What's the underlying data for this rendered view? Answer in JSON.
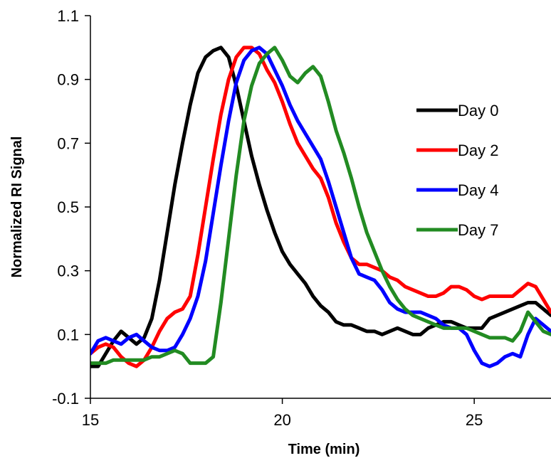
{
  "chart_data": {
    "type": "line",
    "title": "",
    "xlabel": "Time (min)",
    "ylabel": "Normalized RI Signal",
    "xlim": [
      15,
      27
    ],
    "ylim": [
      -0.1,
      1.1
    ],
    "xticks": [
      15,
      20,
      25
    ],
    "xtick_labels": [
      "15",
      "20",
      "25"
    ],
    "yticks": [
      -0.1,
      0.1,
      0.3,
      0.5,
      0.7,
      0.9,
      1.1
    ],
    "ytick_labels": [
      "-0.1",
      "0.1",
      "0.3",
      "0.5",
      "0.7",
      "0.9",
      "1.1"
    ],
    "grid": false,
    "legend_position": "right",
    "series": [
      {
        "name": "Day 0",
        "color": "#000000",
        "points": [
          [
            15.0,
            0.0
          ],
          [
            15.2,
            0.0
          ],
          [
            15.4,
            0.04
          ],
          [
            15.6,
            0.08
          ],
          [
            15.8,
            0.11
          ],
          [
            16.0,
            0.09
          ],
          [
            16.2,
            0.07
          ],
          [
            16.4,
            0.09
          ],
          [
            16.6,
            0.15
          ],
          [
            16.8,
            0.27
          ],
          [
            17.0,
            0.42
          ],
          [
            17.2,
            0.57
          ],
          [
            17.4,
            0.7
          ],
          [
            17.6,
            0.82
          ],
          [
            17.8,
            0.92
          ],
          [
            18.0,
            0.97
          ],
          [
            18.2,
            0.99
          ],
          [
            18.4,
            1.0
          ],
          [
            18.6,
            0.97
          ],
          [
            18.8,
            0.88
          ],
          [
            19.0,
            0.77
          ],
          [
            19.2,
            0.66
          ],
          [
            19.4,
            0.57
          ],
          [
            19.6,
            0.49
          ],
          [
            19.8,
            0.42
          ],
          [
            20.0,
            0.36
          ],
          [
            20.2,
            0.32
          ],
          [
            20.4,
            0.29
          ],
          [
            20.6,
            0.26
          ],
          [
            20.8,
            0.22
          ],
          [
            21.0,
            0.19
          ],
          [
            21.2,
            0.17
          ],
          [
            21.4,
            0.14
          ],
          [
            21.6,
            0.13
          ],
          [
            21.8,
            0.13
          ],
          [
            22.0,
            0.12
          ],
          [
            22.2,
            0.11
          ],
          [
            22.4,
            0.11
          ],
          [
            22.6,
            0.1
          ],
          [
            22.8,
            0.11
          ],
          [
            23.0,
            0.12
          ],
          [
            23.2,
            0.11
          ],
          [
            23.4,
            0.1
          ],
          [
            23.6,
            0.1
          ],
          [
            23.8,
            0.12
          ],
          [
            24.0,
            0.13
          ],
          [
            24.2,
            0.14
          ],
          [
            24.4,
            0.14
          ],
          [
            24.6,
            0.13
          ],
          [
            24.8,
            0.12
          ],
          [
            25.0,
            0.12
          ],
          [
            25.2,
            0.12
          ],
          [
            25.4,
            0.15
          ],
          [
            25.6,
            0.16
          ],
          [
            25.8,
            0.17
          ],
          [
            26.0,
            0.18
          ],
          [
            26.2,
            0.19
          ],
          [
            26.4,
            0.2
          ],
          [
            26.6,
            0.2
          ],
          [
            26.8,
            0.18
          ],
          [
            27.0,
            0.16
          ]
        ]
      },
      {
        "name": "Day 2",
        "color": "#ff0000",
        "points": [
          [
            15.0,
            0.04
          ],
          [
            15.2,
            0.06
          ],
          [
            15.4,
            0.07
          ],
          [
            15.6,
            0.06
          ],
          [
            15.8,
            0.03
          ],
          [
            16.0,
            0.01
          ],
          [
            16.2,
            0.0
          ],
          [
            16.4,
            0.02
          ],
          [
            16.6,
            0.06
          ],
          [
            16.8,
            0.11
          ],
          [
            17.0,
            0.15
          ],
          [
            17.2,
            0.17
          ],
          [
            17.4,
            0.18
          ],
          [
            17.6,
            0.22
          ],
          [
            17.8,
            0.35
          ],
          [
            18.0,
            0.5
          ],
          [
            18.2,
            0.65
          ],
          [
            18.4,
            0.79
          ],
          [
            18.6,
            0.9
          ],
          [
            18.8,
            0.97
          ],
          [
            19.0,
            1.0
          ],
          [
            19.2,
            1.0
          ],
          [
            19.4,
            0.98
          ],
          [
            19.6,
            0.93
          ],
          [
            19.8,
            0.89
          ],
          [
            20.0,
            0.83
          ],
          [
            20.2,
            0.76
          ],
          [
            20.4,
            0.7
          ],
          [
            20.6,
            0.66
          ],
          [
            20.8,
            0.62
          ],
          [
            21.0,
            0.59
          ],
          [
            21.2,
            0.53
          ],
          [
            21.4,
            0.45
          ],
          [
            21.6,
            0.39
          ],
          [
            21.8,
            0.34
          ],
          [
            22.0,
            0.32
          ],
          [
            22.2,
            0.32
          ],
          [
            22.4,
            0.31
          ],
          [
            22.6,
            0.3
          ],
          [
            22.8,
            0.28
          ],
          [
            23.0,
            0.27
          ],
          [
            23.2,
            0.25
          ],
          [
            23.4,
            0.24
          ],
          [
            23.6,
            0.23
          ],
          [
            23.8,
            0.22
          ],
          [
            24.0,
            0.22
          ],
          [
            24.2,
            0.23
          ],
          [
            24.4,
            0.25
          ],
          [
            24.6,
            0.25
          ],
          [
            24.8,
            0.24
          ],
          [
            25.0,
            0.22
          ],
          [
            25.2,
            0.21
          ],
          [
            25.4,
            0.22
          ],
          [
            25.6,
            0.22
          ],
          [
            25.8,
            0.22
          ],
          [
            26.0,
            0.22
          ],
          [
            26.2,
            0.24
          ],
          [
            26.4,
            0.26
          ],
          [
            26.6,
            0.25
          ],
          [
            26.8,
            0.21
          ],
          [
            27.0,
            0.17
          ]
        ]
      },
      {
        "name": "Day 4",
        "color": "#0000ff",
        "points": [
          [
            15.0,
            0.04
          ],
          [
            15.2,
            0.08
          ],
          [
            15.4,
            0.09
          ],
          [
            15.6,
            0.08
          ],
          [
            15.8,
            0.07
          ],
          [
            16.0,
            0.09
          ],
          [
            16.2,
            0.1
          ],
          [
            16.4,
            0.08
          ],
          [
            16.6,
            0.06
          ],
          [
            16.8,
            0.05
          ],
          [
            17.0,
            0.05
          ],
          [
            17.2,
            0.06
          ],
          [
            17.4,
            0.1
          ],
          [
            17.6,
            0.15
          ],
          [
            17.8,
            0.22
          ],
          [
            18.0,
            0.33
          ],
          [
            18.2,
            0.48
          ],
          [
            18.4,
            0.63
          ],
          [
            18.6,
            0.77
          ],
          [
            18.8,
            0.89
          ],
          [
            19.0,
            0.96
          ],
          [
            19.2,
            0.99
          ],
          [
            19.4,
            1.0
          ],
          [
            19.6,
            0.98
          ],
          [
            19.8,
            0.93
          ],
          [
            20.0,
            0.88
          ],
          [
            20.2,
            0.82
          ],
          [
            20.4,
            0.77
          ],
          [
            20.6,
            0.73
          ],
          [
            20.8,
            0.69
          ],
          [
            21.0,
            0.65
          ],
          [
            21.2,
            0.58
          ],
          [
            21.4,
            0.5
          ],
          [
            21.6,
            0.42
          ],
          [
            21.8,
            0.34
          ],
          [
            22.0,
            0.29
          ],
          [
            22.2,
            0.28
          ],
          [
            22.4,
            0.27
          ],
          [
            22.6,
            0.24
          ],
          [
            22.8,
            0.2
          ],
          [
            23.0,
            0.18
          ],
          [
            23.2,
            0.17
          ],
          [
            23.4,
            0.17
          ],
          [
            23.6,
            0.17
          ],
          [
            23.8,
            0.16
          ],
          [
            24.0,
            0.15
          ],
          [
            24.2,
            0.13
          ],
          [
            24.4,
            0.12
          ],
          [
            24.6,
            0.12
          ],
          [
            24.8,
            0.1
          ],
          [
            25.0,
            0.05
          ],
          [
            25.2,
            0.01
          ],
          [
            25.4,
            0.0
          ],
          [
            25.6,
            0.01
          ],
          [
            25.8,
            0.03
          ],
          [
            26.0,
            0.04
          ],
          [
            26.2,
            0.03
          ],
          [
            26.4,
            0.1
          ],
          [
            26.6,
            0.15
          ],
          [
            26.8,
            0.13
          ],
          [
            27.0,
            0.11
          ]
        ]
      },
      {
        "name": "Day 7",
        "color": "#228b22",
        "points": [
          [
            15.0,
            0.01
          ],
          [
            15.2,
            0.01
          ],
          [
            15.4,
            0.01
          ],
          [
            15.6,
            0.02
          ],
          [
            15.8,
            0.02
          ],
          [
            16.0,
            0.02
          ],
          [
            16.2,
            0.02
          ],
          [
            16.4,
            0.02
          ],
          [
            16.6,
            0.03
          ],
          [
            16.8,
            0.03
          ],
          [
            17.0,
            0.04
          ],
          [
            17.2,
            0.05
          ],
          [
            17.4,
            0.04
          ],
          [
            17.6,
            0.01
          ],
          [
            17.8,
            0.01
          ],
          [
            18.0,
            0.01
          ],
          [
            18.2,
            0.03
          ],
          [
            18.4,
            0.2
          ],
          [
            18.6,
            0.4
          ],
          [
            18.8,
            0.6
          ],
          [
            19.0,
            0.77
          ],
          [
            19.2,
            0.88
          ],
          [
            19.4,
            0.95
          ],
          [
            19.6,
            0.98
          ],
          [
            19.8,
            1.0
          ],
          [
            20.0,
            0.96
          ],
          [
            20.2,
            0.91
          ],
          [
            20.4,
            0.89
          ],
          [
            20.6,
            0.92
          ],
          [
            20.8,
            0.94
          ],
          [
            21.0,
            0.91
          ],
          [
            21.2,
            0.83
          ],
          [
            21.4,
            0.74
          ],
          [
            21.6,
            0.67
          ],
          [
            21.8,
            0.59
          ],
          [
            22.0,
            0.5
          ],
          [
            22.2,
            0.42
          ],
          [
            22.4,
            0.36
          ],
          [
            22.6,
            0.3
          ],
          [
            22.8,
            0.25
          ],
          [
            23.0,
            0.21
          ],
          [
            23.2,
            0.18
          ],
          [
            23.4,
            0.16
          ],
          [
            23.6,
            0.15
          ],
          [
            23.8,
            0.14
          ],
          [
            24.0,
            0.13
          ],
          [
            24.2,
            0.12
          ],
          [
            24.4,
            0.12
          ],
          [
            24.6,
            0.12
          ],
          [
            24.8,
            0.12
          ],
          [
            25.0,
            0.11
          ],
          [
            25.2,
            0.1
          ],
          [
            25.4,
            0.09
          ],
          [
            25.6,
            0.09
          ],
          [
            25.8,
            0.09
          ],
          [
            26.0,
            0.08
          ],
          [
            26.2,
            0.11
          ],
          [
            26.4,
            0.17
          ],
          [
            26.6,
            0.14
          ],
          [
            26.8,
            0.11
          ],
          [
            27.0,
            0.1
          ]
        ]
      }
    ]
  }
}
